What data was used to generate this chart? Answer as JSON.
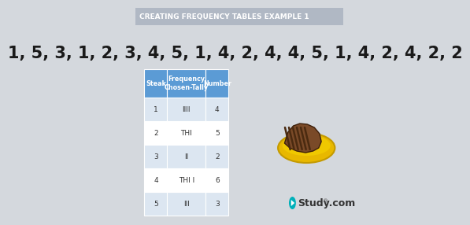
{
  "title": "CREATING FREQUENCY TABLES EXAMPLE 1",
  "sequence": "1, 5, 3, 1, 2, 3, 4, 5, 1, 4, 2, 4, 4, 5, 1, 4, 2, 4, 2, 2",
  "bg_color": "#d4d8dd",
  "title_bar_color": "#b0b8c4",
  "header_color": "#5b9bd5",
  "row_colors": [
    "#dce6f1",
    "#ffffff"
  ],
  "headers": [
    "Steak",
    "Frequency\nChosen-Tally",
    "Number"
  ],
  "rows": [
    [
      "1",
      "IIII",
      "4"
    ],
    [
      "2",
      "THl",
      "5"
    ],
    [
      "3",
      "II",
      "2"
    ],
    [
      "4",
      "THl I",
      "6"
    ],
    [
      "5",
      "III",
      "3"
    ]
  ],
  "title_color": "#ffffff",
  "sequence_color": "#1a1a1a",
  "plate_color": "#e8b800",
  "plate_edge_color": "#c49a00",
  "steak_color": "#7a4a28",
  "steak_edge_color": "#3d1f0a",
  "grill_color": "#4a2a10"
}
